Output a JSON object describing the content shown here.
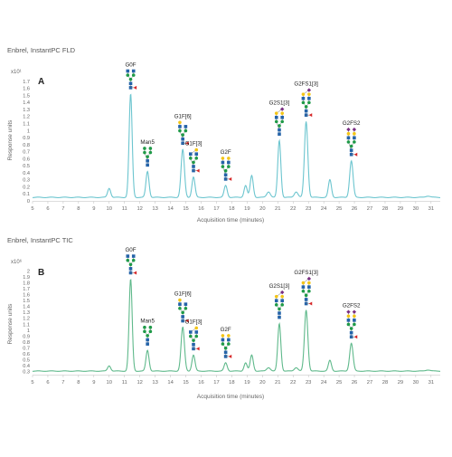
{
  "chart_data": [
    {
      "type": "line",
      "title": "Enbrel, InstantPC FLD",
      "panel_letter": "A",
      "xlabel": "Acquisition time (minutes)",
      "ylabel": "Response units",
      "multiplier": "x10¹",
      "xlim": [
        5,
        31.6
      ],
      "ylim": [
        0,
        1.75
      ],
      "x_ticks": [
        5,
        6,
        7,
        8,
        9,
        10,
        11,
        12,
        13,
        14,
        15,
        16,
        17,
        18,
        19,
        20,
        21,
        22,
        23,
        24,
        25,
        26,
        27,
        28,
        29,
        30,
        31
      ],
      "y_ticks": [
        0,
        0.1,
        0.2,
        0.3,
        0.4,
        0.5,
        0.6,
        0.7,
        0.8,
        0.9,
        1,
        1.1,
        1.2,
        1.3,
        1.4,
        1.5,
        1.6,
        1.7
      ],
      "y_tick_labels": [
        "0",
        "0.1",
        "0.2",
        "0.3",
        "0.4",
        "0.5",
        "0.6",
        "0.7",
        "0.8",
        "0.9",
        "1",
        "1.1",
        "1.2",
        "1.3",
        "1.4",
        "1.5",
        "1.6",
        "1.7"
      ],
      "baseline": 0.05,
      "color": "#6cc5cf",
      "peaks": [
        {
          "x": 10.0,
          "y": 0.13,
          "w": 0.1
        },
        {
          "x": 11.4,
          "y": 1.47,
          "w": 0.1,
          "label": "G0F"
        },
        {
          "x": 12.5,
          "y": 0.37,
          "w": 0.1,
          "label": "Man5"
        },
        {
          "x": 14.8,
          "y": 0.68,
          "w": 0.11,
          "label": "G1F[6]"
        },
        {
          "x": 15.5,
          "y": 0.29,
          "w": 0.1,
          "label": "G1F[3]"
        },
        {
          "x": 17.6,
          "y": 0.17,
          "w": 0.1,
          "label": "G2F"
        },
        {
          "x": 18.9,
          "y": 0.17,
          "w": 0.1
        },
        {
          "x": 19.3,
          "y": 0.31,
          "w": 0.1
        },
        {
          "x": 20.4,
          "y": 0.08,
          "w": 0.12
        },
        {
          "x": 21.1,
          "y": 0.81,
          "w": 0.1,
          "label": "G2S1[3]"
        },
        {
          "x": 22.2,
          "y": 0.08,
          "w": 0.12
        },
        {
          "x": 22.85,
          "y": 1.08,
          "w": 0.11,
          "label": "G2FS1[3]"
        },
        {
          "x": 24.4,
          "y": 0.25,
          "w": 0.1
        },
        {
          "x": 25.8,
          "y": 0.52,
          "w": 0.11,
          "label": "G2FS2"
        },
        {
          "x": 30.8,
          "y": 0.02,
          "w": 0.15
        }
      ]
    },
    {
      "type": "line",
      "title": "Enbrel, InstantPC TIC",
      "panel_letter": "B",
      "xlabel": "Acquisition time (minutes)",
      "ylabel": "Response units",
      "multiplier": "x10⁶",
      "xlim": [
        5,
        31.6
      ],
      "ylim": [
        0.25,
        2.05
      ],
      "x_ticks": [
        5,
        6,
        7,
        8,
        9,
        10,
        11,
        12,
        13,
        14,
        15,
        16,
        17,
        18,
        19,
        20,
        21,
        22,
        23,
        24,
        25,
        26,
        27,
        28,
        29,
        30,
        31
      ],
      "y_ticks": [
        0.3,
        0.4,
        0.5,
        0.6,
        0.7,
        0.8,
        0.9,
        1,
        1.1,
        1.2,
        1.3,
        1.4,
        1.5,
        1.6,
        1.7,
        1.8,
        1.9,
        2
      ],
      "y_tick_labels": [
        "0.3",
        "0.4",
        "0.5",
        "0.6",
        "0.7",
        "0.8",
        "0.9",
        "1",
        "1.1",
        "1.2",
        "1.3",
        "1.4",
        "1.5",
        "1.6",
        "1.7",
        "1.8",
        "1.9",
        "2"
      ],
      "baseline": 0.31,
      "color": "#5fb98b",
      "peaks": [
        {
          "x": 10.0,
          "y": 0.09,
          "w": 0.1
        },
        {
          "x": 11.4,
          "y": 1.55,
          "w": 0.1,
          "label": "G0F"
        },
        {
          "x": 12.5,
          "y": 0.35,
          "w": 0.1,
          "label": "Man5"
        },
        {
          "x": 14.8,
          "y": 0.74,
          "w": 0.11,
          "label": "G1F[6]"
        },
        {
          "x": 15.5,
          "y": 0.27,
          "w": 0.1,
          "label": "G1F[3]"
        },
        {
          "x": 17.6,
          "y": 0.14,
          "w": 0.1,
          "label": "G2F"
        },
        {
          "x": 18.9,
          "y": 0.14,
          "w": 0.1
        },
        {
          "x": 19.3,
          "y": 0.27,
          "w": 0.1
        },
        {
          "x": 20.4,
          "y": 0.06,
          "w": 0.12
        },
        {
          "x": 21.1,
          "y": 0.8,
          "w": 0.1,
          "label": "G2S1[3]"
        },
        {
          "x": 22.2,
          "y": 0.06,
          "w": 0.12
        },
        {
          "x": 22.85,
          "y": 1.03,
          "w": 0.11,
          "label": "G2FS1[3]"
        },
        {
          "x": 24.4,
          "y": 0.18,
          "w": 0.1
        },
        {
          "x": 25.8,
          "y": 0.47,
          "w": 0.11,
          "label": "G2FS2"
        },
        {
          "x": 30.8,
          "y": 0.02,
          "w": 0.15
        }
      ]
    }
  ],
  "glycan_symbols": {
    "glcnac": {
      "shape": "square",
      "color": "#2463a8"
    },
    "mannose": {
      "shape": "circle",
      "color": "#1f9a48"
    },
    "galactose": {
      "shape": "circle",
      "color": "#f3c517"
    },
    "sialic_acid": {
      "shape": "diamond",
      "color": "#7a2e82"
    },
    "fucose": {
      "shape": "triangle",
      "color": "#d62728"
    }
  }
}
